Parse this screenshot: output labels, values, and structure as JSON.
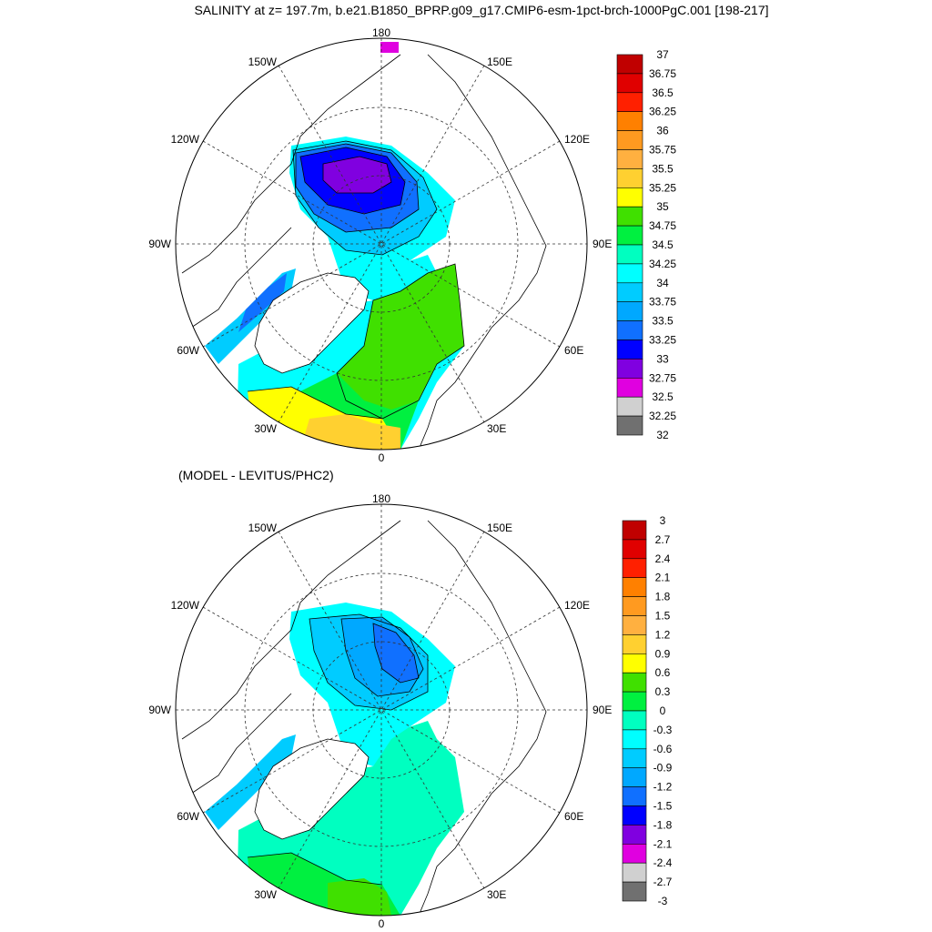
{
  "title": "SALINITY at z= 197.7m, b.e21.B1850_BPRP.g09_g17.CMIP6-esm-1pct-brch-1000PgC.001 [198-217]",
  "subtitle": "(MODEL - LEVITUS/PHC2)",
  "maps": [
    {
      "id": "salinity",
      "longitude_labels": {
        "top": "180",
        "bottom": "0",
        "left": "90W",
        "right": "90E",
        "upper_left_1": "150W",
        "upper_left_2": "120W",
        "upper_right_1": "150E",
        "upper_right_2": "120E",
        "lower_left_1": "60W",
        "lower_left_2": "30W",
        "lower_right_1": "60E",
        "lower_right_2": "30E"
      },
      "colorbar": {
        "labels": [
          "37",
          "36.75",
          "36.5",
          "36.25",
          "36",
          "35.75",
          "35.5",
          "35.25",
          "35",
          "34.75",
          "34.5",
          "34.25",
          "34",
          "33.75",
          "33.5",
          "33.25",
          "33",
          "32.75",
          "32.5",
          "32.25",
          "32"
        ],
        "colors": [
          "#c00000",
          "#e00000",
          "#ff2000",
          "#ff8000",
          "#ff9a20",
          "#ffb040",
          "#ffd030",
          "#ffff00",
          "#40e000",
          "#00f040",
          "#00ffc0",
          "#00ffff",
          "#00ccff",
          "#00a8ff",
          "#1070ff",
          "#0000ff",
          "#8000e0",
          "#e000e0",
          "#d0d0d0",
          "#707070"
        ]
      }
    },
    {
      "id": "difference",
      "longitude_labels": {
        "top": "180",
        "bottom": "0",
        "left": "90W",
        "right": "90E",
        "upper_left_1": "150W",
        "upper_left_2": "120W",
        "upper_right_1": "150E",
        "upper_right_2": "120E",
        "lower_left_1": "60W",
        "lower_left_2": "30W",
        "lower_right_1": "60E",
        "lower_right_2": "30E"
      },
      "colorbar": {
        "labels": [
          "3",
          "2.7",
          "2.4",
          "2.1",
          "1.8",
          "1.5",
          "1.2",
          "0.9",
          "0.6",
          "0.3",
          "0",
          "-0.3",
          "-0.6",
          "-0.9",
          "-1.2",
          "-1.5",
          "-1.8",
          "-2.1",
          "-2.4",
          "-2.7",
          "-3"
        ],
        "colors": [
          "#c00000",
          "#e00000",
          "#ff2000",
          "#ff8000",
          "#ff9a20",
          "#ffb040",
          "#ffd030",
          "#ffff00",
          "#40e000",
          "#00f040",
          "#00ffc0",
          "#00ffff",
          "#00ccff",
          "#00a8ff",
          "#1070ff",
          "#0000ff",
          "#8000e0",
          "#e000e0",
          "#d0d0d0",
          "#707070"
        ]
      }
    }
  ]
}
